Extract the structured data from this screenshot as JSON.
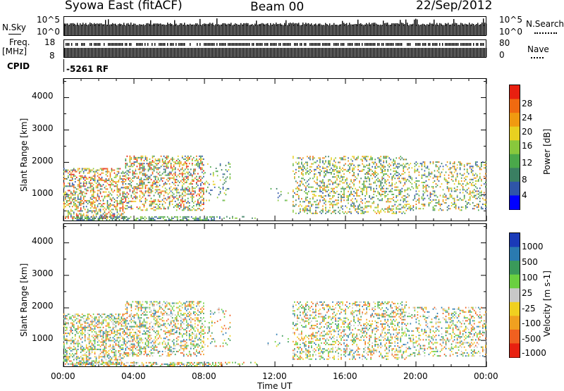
{
  "header": {
    "station": "Syowa East (fitACF)",
    "beam": "Beam 00",
    "date": "22/Sep/2012"
  },
  "top_panels": {
    "nsky_label": "N.Sky",
    "nsky_tick_top": "10^5",
    "nsky_tick_bottom": "10^0",
    "nsearch_label": "N.Search",
    "nsearch_tick_top": "10^5",
    "nsearch_tick_bottom": "10^0",
    "freq_label_top": "Freq.",
    "freq_label_unit": "[MHz]",
    "freq_tick_top": "18",
    "freq_tick_bottom": "8",
    "nave_label": "Nave",
    "nave_tick_top": "80",
    "nave_tick_bottom": "0",
    "cpid_label": "CPID",
    "cpid_value": "-5261 RF"
  },
  "chart_data": [
    {
      "type": "heatmap",
      "name": "power",
      "ylabel": "Slant Range [km]",
      "xlabel": "",
      "yticks": [
        "1000",
        "2000",
        "3000",
        "4000"
      ],
      "ylim": [
        180,
        4600
      ],
      "xlim": [
        0,
        24
      ],
      "colorbar": {
        "label": "Power [dB]",
        "ticks": [
          "4",
          "8",
          "12",
          "16",
          "20",
          "24",
          "28"
        ],
        "colors": [
          "#0000ff",
          "#2f55a8",
          "#3a7f62",
          "#4aa84a",
          "#88c83c",
          "#e8d020",
          "#f09a10",
          "#f06a10",
          "#e82010"
        ]
      }
    },
    {
      "type": "heatmap",
      "name": "velocity",
      "ylabel": "Slant Range [km]",
      "xlabel": "Time UT",
      "yticks": [
        "1000",
        "2000",
        "3000",
        "4000"
      ],
      "xticks": [
        "00:00",
        "04:00",
        "08:00",
        "12:00",
        "16:00",
        "20:00",
        "00:00"
      ],
      "ylim": [
        180,
        4600
      ],
      "xlim": [
        0,
        24
      ],
      "colorbar": {
        "label": "Velocity [m s-1]",
        "ticks": [
          "1000",
          "500",
          "100",
          "25",
          "-25",
          "-100",
          "-500",
          "-1000"
        ],
        "colors": [
          "#1a3ab8",
          "#2a7ab0",
          "#3a9a5a",
          "#6ad040",
          "#c8c8c8",
          "#f0d020",
          "#f0a020",
          "#f06020",
          "#e82010"
        ]
      }
    }
  ]
}
